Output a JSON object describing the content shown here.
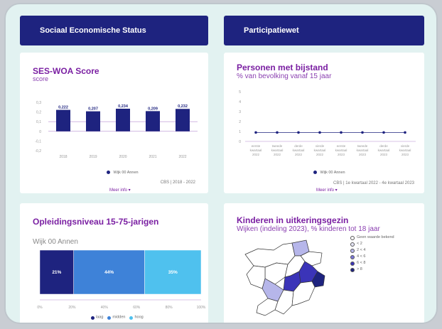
{
  "headers": {
    "left": "Sociaal Economische Status",
    "right": "Participatiewet"
  },
  "ses": {
    "title": "SES-WOA Score",
    "subtitle": "score",
    "legend": "Wijk 00 Annen",
    "source": "CBS | 2018 - 2022",
    "more": "Meer info ▾",
    "yticks": [
      "0,3",
      "0,2",
      "0,1",
      "0",
      "-0,1",
      "-0,2"
    ],
    "chart_data": {
      "type": "bar",
      "categories": [
        "2018",
        "2019",
        "2020",
        "2021",
        "2022"
      ],
      "values": [
        0.222,
        0.207,
        0.234,
        0.209,
        0.232
      ],
      "labels": [
        "0,222",
        "0,207",
        "0,234",
        "0,209",
        "0,232"
      ],
      "ylim": [
        -0.2,
        0.3
      ],
      "series_name": "Wijk 00 Annen",
      "color": "#1e237f"
    }
  },
  "bijstand": {
    "title": "Personen met bijstand",
    "subtitle": "% van bevolking vanaf 15 jaar",
    "legend": "Wijk 00 Annen",
    "source": "CBS | 1e kwartaal 2022 - 4e kwartaal 2023",
    "more": "Meer info ▾",
    "yticks": [
      "5",
      "4",
      "3",
      "2",
      "1",
      "0"
    ],
    "chart_data": {
      "type": "line",
      "x": [
        [
          "eerste",
          "kwartaal",
          "2022"
        ],
        [
          "tweede",
          "kwartaal",
          "2022"
        ],
        [
          "derde",
          "kwartaal",
          "2022"
        ],
        [
          "vierde",
          "kwartaal",
          "2022"
        ],
        [
          "eerste",
          "kwartaal",
          "2023"
        ],
        [
          "tweede",
          "kwartaal",
          "2023"
        ],
        [
          "derde",
          "kwartaal",
          "2023"
        ],
        [
          "vierde",
          "kwartaal",
          "2023"
        ]
      ],
      "values": [
        0.9,
        0.9,
        0.9,
        0.9,
        0.9,
        0.9,
        0.9,
        0.9
      ],
      "ylim": [
        0,
        5
      ],
      "series_name": "Wijk 00 Annen",
      "color": "#1e237f"
    }
  },
  "opleiding": {
    "title": "Opleidingsniveau 15-75-jarigen",
    "category": "Wijk 00 Annen",
    "xticks": [
      "0%",
      "20%",
      "40%",
      "60%",
      "80%",
      "100%"
    ],
    "chart_data": {
      "type": "bar",
      "stacked": true,
      "orientation": "horizontal",
      "categories": [
        "Wijk 00 Annen"
      ],
      "series": [
        {
          "name": "laag",
          "values": [
            21
          ],
          "label": "21%",
          "color": "#1e237f"
        },
        {
          "name": "midden",
          "values": [
            44
          ],
          "label": "44%",
          "color": "#3e82d8"
        },
        {
          "name": "hoog",
          "values": [
            35
          ],
          "label": "35%",
          "color": "#4fc1ee"
        }
      ],
      "xlim": [
        0,
        100
      ]
    }
  },
  "kinderen": {
    "title": "Kinderen in uitkeringsgezin",
    "subtitle": "Wijken (indeling 2023), % kinderen tot 18 jaar",
    "legend": [
      {
        "label": "Geen waarde bekend",
        "color": "#ffffff"
      },
      {
        "label": "< 2",
        "color": "#e6e6f7"
      },
      {
        "label": "2 < 4",
        "color": "#b6b6ea"
      },
      {
        "label": "4 < 6",
        "color": "#7a76d8"
      },
      {
        "label": "6 < 8",
        "color": "#3b34b8"
      },
      {
        "label": "> 8",
        "color": "#1e237f"
      }
    ]
  }
}
